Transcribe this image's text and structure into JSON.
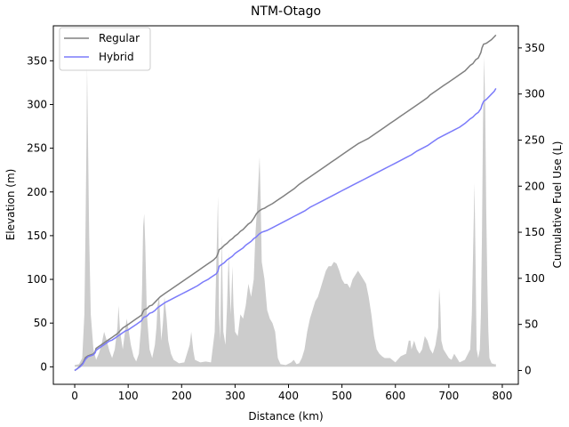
{
  "chart_data": {
    "type": "line",
    "title": "NTM-Otago",
    "xlabel": "Distance (km)",
    "ylabel_left": "Elevation (m)",
    "ylabel_right": "Cumulative Fuel Use (L)",
    "xlim": [
      -40,
      830
    ],
    "ylim_left": [
      -20,
      390
    ],
    "ylim_right": [
      -15,
      374
    ],
    "x_ticks": [
      0,
      100,
      200,
      300,
      400,
      500,
      600,
      700,
      800
    ],
    "y_left_ticks": [
      0,
      50,
      100,
      150,
      200,
      250,
      300,
      350
    ],
    "y_right_ticks": [
      0,
      50,
      100,
      150,
      200,
      250,
      300,
      350
    ],
    "grid": false,
    "legend_position": "top-left",
    "elevation": {
      "color": "#cccccc",
      "points": [
        [
          0,
          2
        ],
        [
          8,
          3
        ],
        [
          14,
          10
        ],
        [
          18,
          60
        ],
        [
          20,
          150
        ],
        [
          22,
          260
        ],
        [
          23,
          345
        ],
        [
          25,
          250
        ],
        [
          27,
          150
        ],
        [
          30,
          60
        ],
        [
          35,
          20
        ],
        [
          40,
          8
        ],
        [
          45,
          15
        ],
        [
          50,
          25
        ],
        [
          55,
          40
        ],
        [
          60,
          30
        ],
        [
          65,
          18
        ],
        [
          70,
          10
        ],
        [
          75,
          20
        ],
        [
          80,
          45
        ],
        [
          82,
          70
        ],
        [
          85,
          40
        ],
        [
          90,
          20
        ],
        [
          95,
          45
        ],
        [
          97,
          55
        ],
        [
          100,
          45
        ],
        [
          105,
          25
        ],
        [
          110,
          12
        ],
        [
          115,
          6
        ],
        [
          120,
          15
        ],
        [
          124,
          45
        ],
        [
          126,
          90
        ],
        [
          128,
          160
        ],
        [
          130,
          175
        ],
        [
          132,
          140
        ],
        [
          135,
          60
        ],
        [
          140,
          20
        ],
        [
          145,
          10
        ],
        [
          150,
          25
        ],
        [
          153,
          45
        ],
        [
          155,
          70
        ],
        [
          158,
          80
        ],
        [
          160,
          55
        ],
        [
          162,
          30
        ],
        [
          165,
          50
        ],
        [
          168,
          80
        ],
        [
          172,
          55
        ],
        [
          175,
          30
        ],
        [
          180,
          15
        ],
        [
          185,
          8
        ],
        [
          195,
          4
        ],
        [
          205,
          5
        ],
        [
          215,
          25
        ],
        [
          218,
          40
        ],
        [
          222,
          18
        ],
        [
          225,
          8
        ],
        [
          235,
          5
        ],
        [
          245,
          6
        ],
        [
          255,
          5
        ],
        [
          262,
          40
        ],
        [
          265,
          120
        ],
        [
          268,
          195
        ],
        [
          270,
          60
        ],
        [
          272,
          30
        ],
        [
          275,
          150
        ],
        [
          278,
          40
        ],
        [
          282,
          25
        ],
        [
          285,
          70
        ],
        [
          288,
          130
        ],
        [
          290,
          90
        ],
        [
          292,
          60
        ],
        [
          295,
          115
        ],
        [
          297,
          70
        ],
        [
          300,
          40
        ],
        [
          305,
          35
        ],
        [
          310,
          60
        ],
        [
          315,
          55
        ],
        [
          320,
          70
        ],
        [
          325,
          95
        ],
        [
          330,
          80
        ],
        [
          335,
          100
        ],
        [
          338,
          150
        ],
        [
          342,
          190
        ],
        [
          344,
          215
        ],
        [
          346,
          240
        ],
        [
          348,
          190
        ],
        [
          350,
          120
        ],
        [
          355,
          100
        ],
        [
          360,
          65
        ],
        [
          365,
          55
        ],
        [
          370,
          50
        ],
        [
          375,
          40
        ],
        [
          380,
          10
        ],
        [
          385,
          3
        ],
        [
          395,
          2
        ],
        [
          405,
          5
        ],
        [
          410,
          8
        ],
        [
          415,
          3
        ],
        [
          420,
          4
        ],
        [
          425,
          10
        ],
        [
          430,
          20
        ],
        [
          435,
          40
        ],
        [
          440,
          55
        ],
        [
          445,
          65
        ],
        [
          450,
          75
        ],
        [
          455,
          80
        ],
        [
          460,
          90
        ],
        [
          465,
          100
        ],
        [
          470,
          110
        ],
        [
          475,
          115
        ],
        [
          480,
          115
        ],
        [
          485,
          120
        ],
        [
          490,
          118
        ],
        [
          495,
          110
        ],
        [
          500,
          100
        ],
        [
          505,
          95
        ],
        [
          510,
          95
        ],
        [
          515,
          90
        ],
        [
          520,
          100
        ],
        [
          525,
          105
        ],
        [
          530,
          110
        ],
        [
          535,
          105
        ],
        [
          540,
          100
        ],
        [
          545,
          95
        ],
        [
          550,
          80
        ],
        [
          555,
          60
        ],
        [
          560,
          35
        ],
        [
          565,
          20
        ],
        [
          570,
          15
        ],
        [
          575,
          12
        ],
        [
          580,
          10
        ],
        [
          590,
          10
        ],
        [
          600,
          5
        ],
        [
          610,
          12
        ],
        [
          620,
          15
        ],
        [
          625,
          30
        ],
        [
          628,
          30
        ],
        [
          630,
          20
        ],
        [
          635,
          30
        ],
        [
          640,
          20
        ],
        [
          645,
          15
        ],
        [
          650,
          20
        ],
        [
          655,
          35
        ],
        [
          660,
          30
        ],
        [
          665,
          20
        ],
        [
          670,
          15
        ],
        [
          675,
          25
        ],
        [
          680,
          45
        ],
        [
          682,
          90
        ],
        [
          684,
          70
        ],
        [
          686,
          30
        ],
        [
          690,
          20
        ],
        [
          695,
          15
        ],
        [
          700,
          10
        ],
        [
          705,
          8
        ],
        [
          710,
          15
        ],
        [
          715,
          10
        ],
        [
          720,
          5
        ],
        [
          730,
          8
        ],
        [
          740,
          20
        ],
        [
          743,
          60
        ],
        [
          746,
          150
        ],
        [
          748,
          210
        ],
        [
          750,
          120
        ],
        [
          752,
          20
        ],
        [
          755,
          10
        ],
        [
          758,
          20
        ],
        [
          760,
          60
        ],
        [
          762,
          150
        ],
        [
          764,
          280
        ],
        [
          766,
          355
        ],
        [
          768,
          300
        ],
        [
          770,
          180
        ],
        [
          772,
          100
        ],
        [
          774,
          40
        ],
        [
          776,
          10
        ],
        [
          780,
          4
        ],
        [
          785,
          3
        ],
        [
          788,
          3
        ]
      ]
    },
    "series": [
      {
        "name": "Regular",
        "color": "#808080",
        "x": [
          0,
          5,
          10,
          15,
          20,
          25,
          30,
          35,
          38,
          40,
          45,
          50,
          55,
          60,
          65,
          70,
          75,
          80,
          85,
          90,
          95,
          100,
          105,
          110,
          115,
          120,
          125,
          128,
          130,
          135,
          140,
          145,
          150,
          155,
          160,
          170,
          180,
          190,
          200,
          210,
          220,
          230,
          240,
          250,
          255,
          260,
          265,
          268,
          270,
          275,
          280,
          285,
          290,
          295,
          300,
          305,
          310,
          315,
          320,
          325,
          330,
          335,
          340,
          345,
          350,
          355,
          360,
          370,
          380,
          390,
          400,
          410,
          420,
          430,
          440,
          450,
          460,
          470,
          480,
          490,
          500,
          510,
          520,
          530,
          540,
          550,
          560,
          570,
          580,
          590,
          600,
          610,
          620,
          630,
          640,
          650,
          660,
          665,
          670,
          680,
          690,
          700,
          710,
          720,
          730,
          740,
          745,
          750,
          755,
          760,
          762,
          765,
          770,
          775,
          780,
          785,
          788
        ],
        "y": [
          0,
          2,
          5,
          8,
          14,
          16,
          17,
          18,
          20,
          24,
          26,
          28,
          30,
          32,
          34,
          36,
          38,
          40,
          43,
          46,
          48,
          50,
          52,
          54,
          56,
          58,
          60,
          64,
          66,
          67,
          70,
          71,
          74,
          77,
          80,
          84,
          88,
          92,
          96,
          100,
          104,
          108,
          112,
          116,
          118,
          120,
          123,
          127,
          131,
          133,
          136,
          138,
          141,
          143,
          146,
          148,
          151,
          153,
          156,
          159,
          161,
          165,
          170,
          173,
          175,
          176,
          178,
          181,
          185,
          189,
          193,
          197,
          202,
          206,
          210,
          214,
          218,
          222,
          226,
          230,
          234,
          238,
          242,
          246,
          249,
          252,
          256,
          260,
          264,
          268,
          272,
          276,
          280,
          284,
          288,
          292,
          296,
          299,
          301,
          305,
          309,
          313,
          317,
          321,
          325,
          331,
          333,
          337,
          339,
          345,
          350,
          354,
          355,
          357,
          359,
          362,
          364
        ]
      },
      {
        "name": "Hybrid",
        "color": "#7b7bfa",
        "x": [
          0,
          5,
          10,
          15,
          20,
          25,
          30,
          35,
          38,
          40,
          45,
          50,
          55,
          60,
          65,
          70,
          75,
          80,
          85,
          90,
          95,
          100,
          105,
          110,
          115,
          120,
          125,
          128,
          130,
          135,
          140,
          145,
          150,
          155,
          160,
          170,
          180,
          190,
          200,
          210,
          220,
          230,
          240,
          250,
          255,
          260,
          265,
          268,
          270,
          275,
          280,
          285,
          290,
          295,
          300,
          305,
          310,
          315,
          320,
          325,
          330,
          335,
          340,
          345,
          350,
          355,
          360,
          370,
          380,
          390,
          400,
          410,
          420,
          430,
          440,
          450,
          460,
          470,
          480,
          490,
          500,
          510,
          520,
          530,
          540,
          550,
          560,
          570,
          580,
          590,
          600,
          610,
          620,
          630,
          640,
          650,
          660,
          665,
          670,
          680,
          690,
          700,
          710,
          720,
          730,
          740,
          745,
          750,
          755,
          760,
          762,
          765,
          770,
          775,
          780,
          785,
          788
        ],
        "y": [
          0,
          2,
          4,
          7,
          12,
          15,
          16,
          17,
          19,
          22,
          24,
          26,
          28,
          30,
          32,
          33,
          35,
          37,
          39,
          41,
          43,
          44,
          46,
          48,
          50,
          52,
          54,
          57,
          58,
          59,
          62,
          63,
          65,
          68,
          70,
          74,
          77,
          80,
          83,
          86,
          89,
          92,
          96,
          99,
          101,
          103,
          105,
          108,
          113,
          115,
          117,
          120,
          122,
          124,
          127,
          129,
          131,
          133,
          136,
          138,
          140,
          143,
          145,
          148,
          150,
          151,
          152,
          155,
          158,
          161,
          164,
          167,
          170,
          173,
          177,
          180,
          183,
          186,
          189,
          192,
          195,
          198,
          201,
          204,
          207,
          210,
          213,
          216,
          219,
          222,
          225,
          228,
          231,
          234,
          238,
          241,
          244,
          246,
          248,
          252,
          255,
          258,
          261,
          264,
          268,
          273,
          275,
          278,
          280,
          284,
          288,
          292,
          294,
          297,
          300,
          303,
          306
        ]
      }
    ]
  }
}
